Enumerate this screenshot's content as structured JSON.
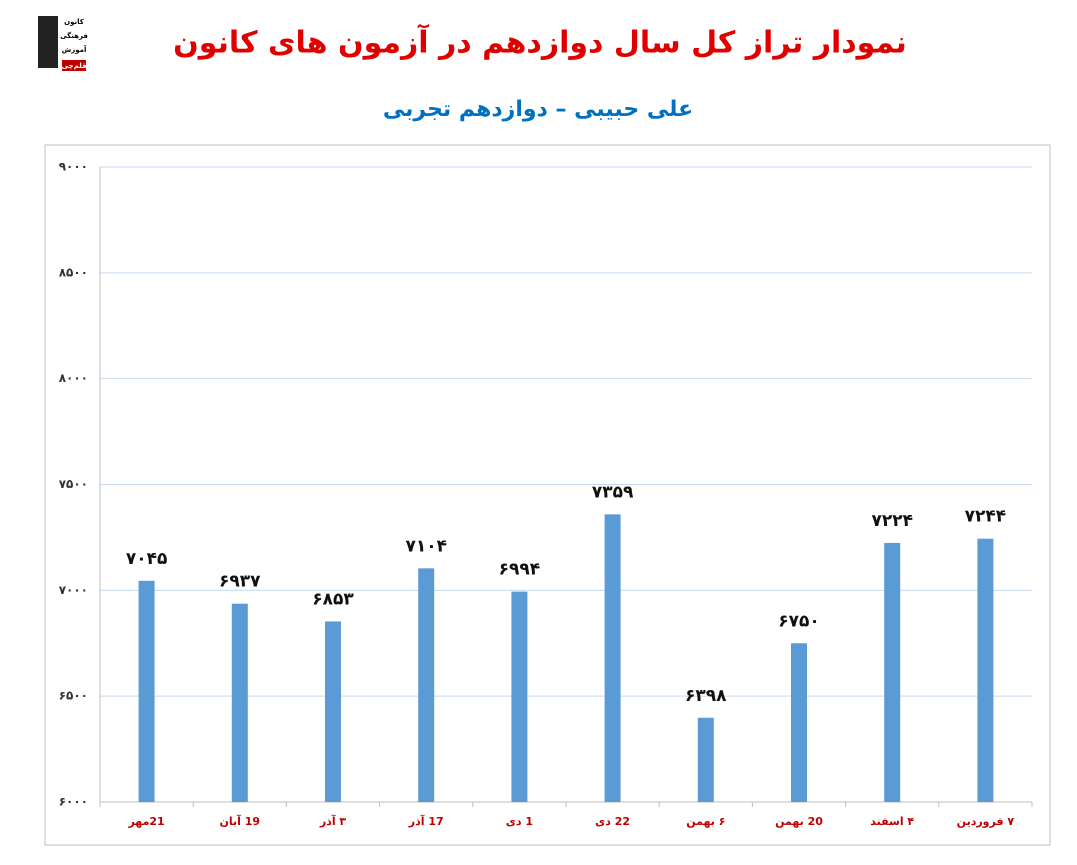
{
  "chart_data": {
    "type": "bar",
    "title": "نمودار تراز کل سال دوازدهم در آزمون های کانون",
    "subtitle": "علی حبیبی – دوازدهم تجربی",
    "logo_text": [
      "کانون",
      "فرهنگی",
      "آموزش",
      "قلم‌چی"
    ],
    "categories": [
      "21مهر",
      "19 آبان",
      "۳ آذر",
      "17 آذر",
      "1 دی",
      "22 دی",
      "۶ بهمن",
      "20 بهمن",
      "۴ اسفند",
      "۷ فروردین"
    ],
    "values": [
      7045,
      6937,
      6853,
      7104,
      6994,
      7359,
      6398,
      6750,
      7224,
      7244
    ],
    "value_labels": [
      "۷۰۴۵",
      "۶۹۳۷",
      "۶۸۵۳",
      "۷۱۰۴",
      "۶۹۹۴",
      "۷۳۵۹",
      "۶۳۹۸",
      "۶۷۵۰",
      "۷۲۲۴",
      "۷۲۴۴"
    ],
    "color": "#5b9bd5",
    "ylim": [
      6000,
      9000
    ],
    "yticks": [
      {
        "value": 6000,
        "label": "۶۰۰۰"
      },
      {
        "value": 6500,
        "label": "۶۵۰۰"
      },
      {
        "value": 7000,
        "label": "۷۰۰۰"
      },
      {
        "value": 7500,
        "label": "۷۵۰۰"
      },
      {
        "value": 8000,
        "label": "۸۰۰۰"
      },
      {
        "value": 8500,
        "label": "۸۵۰۰"
      },
      {
        "value": 9000,
        "label": "۹۰۰۰"
      }
    ],
    "grid": true
  }
}
